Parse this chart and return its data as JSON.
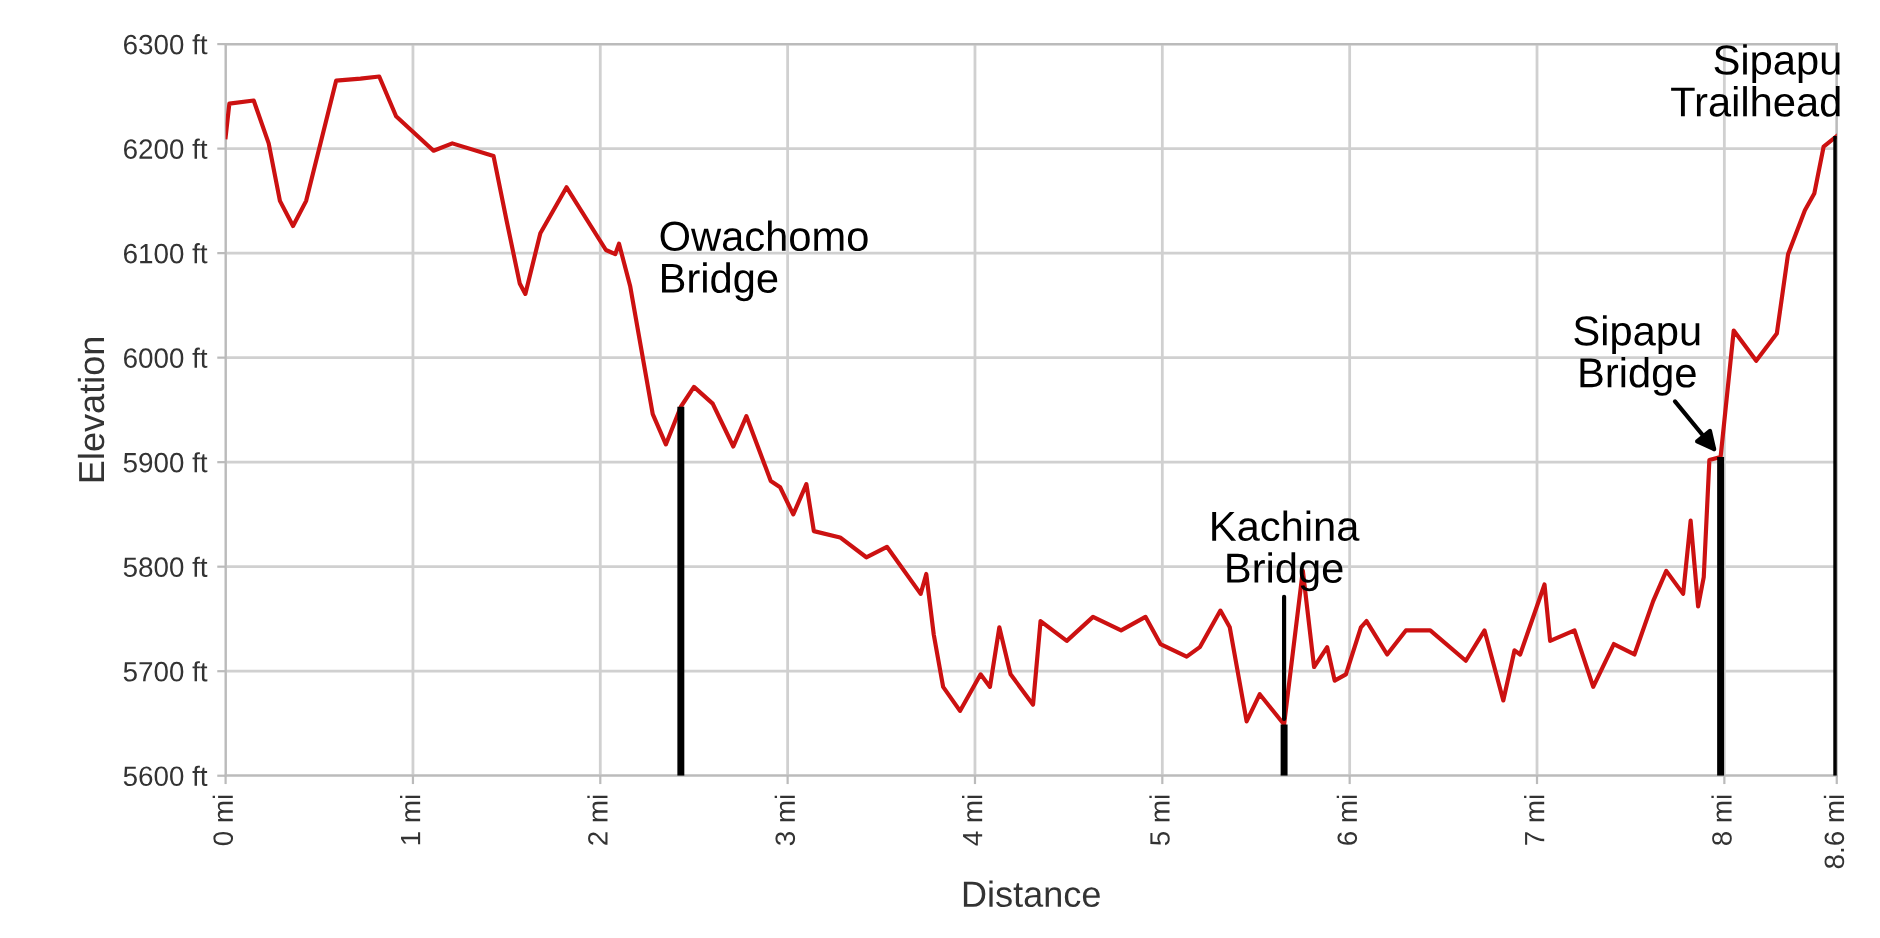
{
  "chart_data": {
    "type": "line",
    "xlabel": "Distance",
    "ylabel": "Elevation",
    "x": [
      0,
      0.02,
      0.15,
      0.23,
      0.29,
      0.36,
      0.43,
      0.59,
      0.72,
      0.82,
      0.91,
      1.11,
      1.21,
      1.43,
      1.5,
      1.57,
      1.6,
      1.68,
      1.82,
      2.03,
      2.08,
      2.1,
      2.16,
      2.28,
      2.35,
      2.43,
      2.5,
      2.6,
      2.71,
      2.78,
      2.91,
      2.96,
      3.03,
      3.1,
      3.14,
      3.28,
      3.42,
      3.53,
      3.71,
      3.74,
      3.78,
      3.83,
      3.92,
      4.03,
      4.08,
      4.13,
      4.19,
      4.31,
      4.35,
      4.49,
      4.63,
      4.78,
      4.91,
      4.99,
      5.13,
      5.2,
      5.31,
      5.36,
      5.45,
      5.52,
      5.65,
      5.75,
      5.81,
      5.88,
      5.92,
      5.98,
      6.06,
      6.09,
      6.2,
      6.3,
      6.43,
      6.62,
      6.72,
      6.82,
      6.88,
      6.91,
      7.04,
      7.07,
      7.2,
      7.3,
      7.41,
      7.52,
      7.62,
      7.69,
      7.78,
      7.82,
      7.86,
      7.89,
      7.92,
      7.98,
      8.05,
      8.17,
      8.28,
      8.34,
      8.43,
      8.48,
      8.53,
      8.6
    ],
    "series": [
      {
        "color": "#cc1111",
        "values": [
          6211,
          6243,
          6246,
          6205,
          6150,
          6126,
          6150,
          6265,
          6267,
          6269,
          6231,
          6198,
          6205,
          6193,
          6131,
          6071,
          6061,
          6119,
          6163,
          6103,
          6099,
          6109,
          6068,
          5946,
          5917,
          5953,
          5972,
          5956,
          5915,
          5944,
          5882,
          5876,
          5850,
          5879,
          5834,
          5828,
          5809,
          5819,
          5774,
          5793,
          5735,
          5685,
          5662,
          5697,
          5685,
          5742,
          5697,
          5668,
          5748,
          5729,
          5752,
          5739,
          5752,
          5726,
          5714,
          5723,
          5758,
          5742,
          5652,
          5678,
          5649,
          5796,
          5704,
          5723,
          5691,
          5697,
          5742,
          5748,
          5716,
          5739,
          5739,
          5710,
          5739,
          5672,
          5720,
          5716,
          5783,
          5729,
          5739,
          5685,
          5726,
          5716,
          5767,
          5796,
          5774,
          5844,
          5762,
          5790,
          5902,
          5905,
          6026,
          5997,
          6023,
          6099,
          6141,
          6157,
          6202,
          6212
        ]
      }
    ],
    "xlim": [
      0,
      8.6
    ],
    "ylim": [
      5600,
      6300
    ],
    "xticks": [
      {
        "value": 0,
        "label": "0 mi"
      },
      {
        "value": 1,
        "label": "1 mi"
      },
      {
        "value": 2,
        "label": "2 mi"
      },
      {
        "value": 3,
        "label": "3 mi"
      },
      {
        "value": 4,
        "label": "4 mi"
      },
      {
        "value": 5,
        "label": "5 mi"
      },
      {
        "value": 6,
        "label": "6 mi"
      },
      {
        "value": 7,
        "label": "7 mi"
      },
      {
        "value": 8,
        "label": "8 mi"
      },
      {
        "value": 8.6,
        "label": "8.6 mi"
      }
    ],
    "yticks": [
      {
        "value": 5600,
        "label": "5600 ft"
      },
      {
        "value": 5700,
        "label": "5700 ft"
      },
      {
        "value": 5800,
        "label": "5800 ft"
      },
      {
        "value": 5900,
        "label": "5900 ft"
      },
      {
        "value": 6000,
        "label": "6000 ft"
      },
      {
        "value": 6100,
        "label": "6100 ft"
      },
      {
        "value": 6200,
        "label": "6200 ft"
      },
      {
        "value": 6300,
        "label": "6300 ft"
      }
    ],
    "annotations": [
      {
        "text": "Owachomo\nBridge",
        "x": 2.43,
        "y": 5953
      },
      {
        "text": "Kachina\nBridge",
        "x": 5.65,
        "y": 5649
      },
      {
        "text": "Sipapu\nBridge",
        "x": 7.98,
        "y": 5905
      },
      {
        "text": "Sipapu\nTrailhead",
        "x": 8.6,
        "y": 6212
      }
    ],
    "grid": true,
    "legend": false,
    "marker": "none",
    "line_style": "solid"
  }
}
